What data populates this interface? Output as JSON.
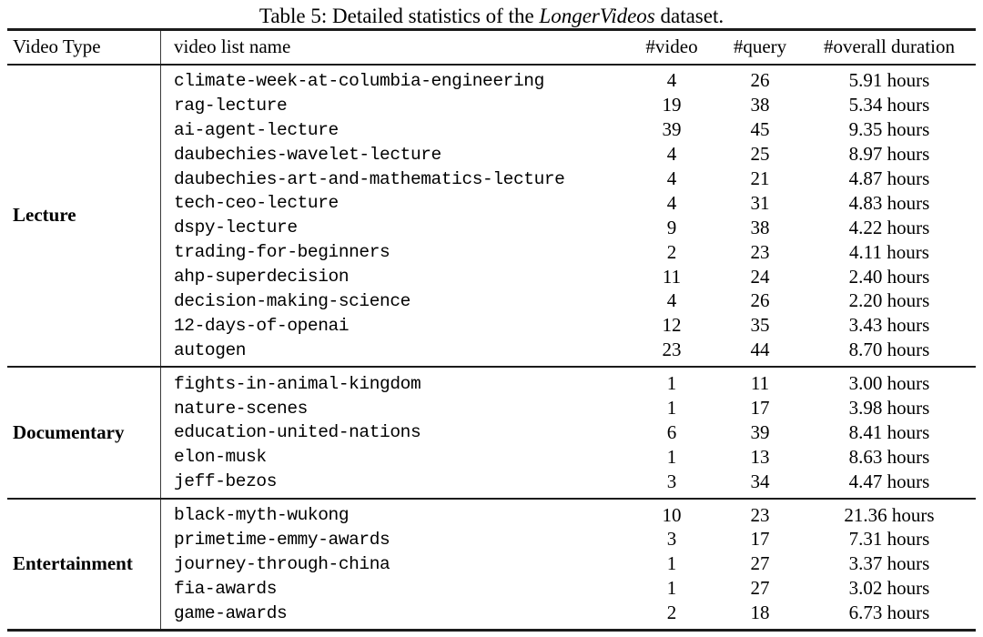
{
  "caption": {
    "prefix": "Table 5: Detailed statistics of the ",
    "emph": "LongerVideos",
    "suffix": " dataset."
  },
  "header": {
    "video_type": "Video Type",
    "video_list_name": "video list name",
    "num_video": "#video",
    "num_query": "#query",
    "overall_duration": "#overall duration"
  },
  "sections": [
    {
      "type": "Lecture",
      "rows": [
        {
          "name": "climate-week-at-columbia-engineering",
          "videos": "4",
          "queries": "26",
          "duration": "5.91 hours"
        },
        {
          "name": "rag-lecture",
          "videos": "19",
          "queries": "38",
          "duration": "5.34 hours"
        },
        {
          "name": "ai-agent-lecture",
          "videos": "39",
          "queries": "45",
          "duration": "9.35 hours"
        },
        {
          "name": "daubechies-wavelet-lecture",
          "videos": "4",
          "queries": "25",
          "duration": "8.97 hours"
        },
        {
          "name": "daubechies-art-and-mathematics-lecture",
          "videos": "4",
          "queries": "21",
          "duration": "4.87 hours"
        },
        {
          "name": "tech-ceo-lecture",
          "videos": "4",
          "queries": "31",
          "duration": "4.83 hours"
        },
        {
          "name": "dspy-lecture",
          "videos": "9",
          "queries": "38",
          "duration": "4.22 hours"
        },
        {
          "name": "trading-for-beginners",
          "videos": "2",
          "queries": "23",
          "duration": "4.11 hours"
        },
        {
          "name": "ahp-superdecision",
          "videos": "11",
          "queries": "24",
          "duration": "2.40 hours"
        },
        {
          "name": "decision-making-science",
          "videos": "4",
          "queries": "26",
          "duration": "2.20 hours"
        },
        {
          "name": "12-days-of-openai",
          "videos": "12",
          "queries": "35",
          "duration": "3.43 hours"
        },
        {
          "name": "autogen",
          "videos": "23",
          "queries": "44",
          "duration": "8.70 hours"
        }
      ]
    },
    {
      "type": "Documentary",
      "rows": [
        {
          "name": "fights-in-animal-kingdom",
          "videos": "1",
          "queries": "11",
          "duration": "3.00 hours"
        },
        {
          "name": "nature-scenes",
          "videos": "1",
          "queries": "17",
          "duration": "3.98 hours"
        },
        {
          "name": "education-united-nations",
          "videos": "6",
          "queries": "39",
          "duration": "8.41 hours"
        },
        {
          "name": "elon-musk",
          "videos": "1",
          "queries": "13",
          "duration": "8.63 hours"
        },
        {
          "name": "jeff-bezos",
          "videos": "3",
          "queries": "34",
          "duration": "4.47 hours"
        }
      ]
    },
    {
      "type": "Entertainment",
      "rows": [
        {
          "name": "black-myth-wukong",
          "videos": "10",
          "queries": "23",
          "duration": "21.36 hours"
        },
        {
          "name": "primetime-emmy-awards",
          "videos": "3",
          "queries": "17",
          "duration": "7.31 hours"
        },
        {
          "name": "journey-through-china",
          "videos": "1",
          "queries": "27",
          "duration": "3.37 hours"
        },
        {
          "name": "fia-awards",
          "videos": "1",
          "queries": "27",
          "duration": "3.02 hours"
        },
        {
          "name": "game-awards",
          "videos": "2",
          "queries": "18",
          "duration": "6.73 hours"
        }
      ]
    }
  ],
  "colors": {
    "text": "#000000",
    "rule": "#1b1b1b",
    "background": "#ffffff"
  }
}
